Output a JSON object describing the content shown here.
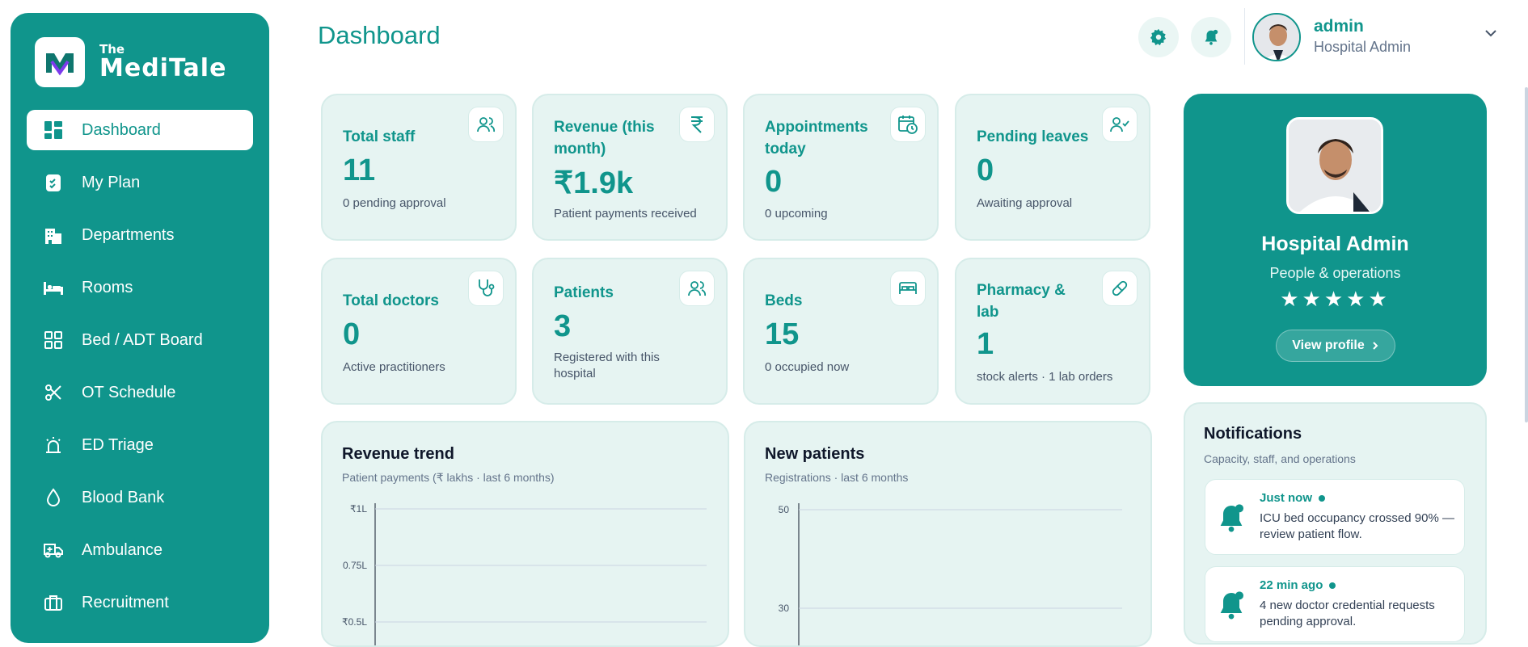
{
  "brand": {
    "the": "The",
    "name": "MediTale"
  },
  "sidebar": {
    "items": [
      {
        "label": "Dashboard",
        "icon": "dashboard-icon",
        "active": true
      },
      {
        "label": "My Plan",
        "icon": "clipboard-check-icon"
      },
      {
        "label": "Departments",
        "icon": "building-icon"
      },
      {
        "label": "Rooms",
        "icon": "bed-icon"
      },
      {
        "label": "Bed / ADT Board",
        "icon": "grid-icon"
      },
      {
        "label": "OT Schedule",
        "icon": "scissors-icon"
      },
      {
        "label": "ED Triage",
        "icon": "alarm-icon"
      },
      {
        "label": "Blood Bank",
        "icon": "droplet-icon"
      },
      {
        "label": "Ambulance",
        "icon": "ambulance-icon"
      },
      {
        "label": "Recruitment",
        "icon": "briefcase-icon"
      }
    ]
  },
  "header": {
    "title": "Dashboard",
    "user_name": "admin",
    "user_role": "Hospital Admin"
  },
  "cards": [
    {
      "label": "Total staff",
      "value": "11",
      "sub": "0 pending approval",
      "icon": "users-icon"
    },
    {
      "label": "Revenue (this month)",
      "value": "₹1.9k",
      "sub": "Patient payments received",
      "icon": "rupee-icon"
    },
    {
      "label": "Appointments today",
      "value": "0",
      "sub": "0 upcoming",
      "icon": "calendar-clock-icon"
    },
    {
      "label": "Pending leaves",
      "value": "0",
      "sub": "Awaiting approval",
      "icon": "user-check-icon"
    },
    {
      "label": "Total doctors",
      "value": "0",
      "sub": "Active practitioners",
      "icon": "stethoscope-icon"
    },
    {
      "label": "Patients",
      "value": "3",
      "sub": "Registered with this hospital",
      "icon": "users-icon"
    },
    {
      "label": "Beds",
      "value": "15",
      "sub": "0 occupied now",
      "icon": "bed-icon"
    },
    {
      "label": "Pharmacy & lab",
      "value": "1",
      "sub": "stock alerts · 1 lab orders",
      "icon": "pill-icon"
    }
  ],
  "profile": {
    "name": "Hospital Admin",
    "subtitle": "People & operations",
    "stars": "★★★★★",
    "rating": 5,
    "button": "View profile"
  },
  "charts": {
    "revenue": {
      "title": "Revenue trend",
      "subtitle": "Patient payments (₹ lakhs · last 6 months)"
    },
    "patients": {
      "title": "New patients",
      "subtitle": "Registrations · last 6 months"
    }
  },
  "chart_data": [
    {
      "type": "line",
      "title": "Revenue trend",
      "subtitle": "Patient payments (₹ lakhs · last 6 months)",
      "yticks": [
        "₹1L",
        "0.75L",
        "₹0.5L"
      ],
      "ylim": [
        0.5,
        1
      ],
      "grid": true,
      "series": []
    },
    {
      "type": "line",
      "title": "New patients",
      "subtitle": "Registrations · last 6 months",
      "yticks": [
        "50",
        "30"
      ],
      "ylim": [
        30,
        50
      ],
      "grid": true,
      "series": []
    }
  ],
  "notifications": {
    "title": "Notifications",
    "subtitle": "Capacity, staff, and operations",
    "items": [
      {
        "time": "Just now",
        "text": "ICU bed occupancy crossed 90% — review patient flow."
      },
      {
        "time": "22 min ago",
        "text": "4 new doctor credential requests pending approval."
      }
    ]
  },
  "colors": {
    "accent": "#10958c",
    "card_bg": "#e6f4f2"
  }
}
